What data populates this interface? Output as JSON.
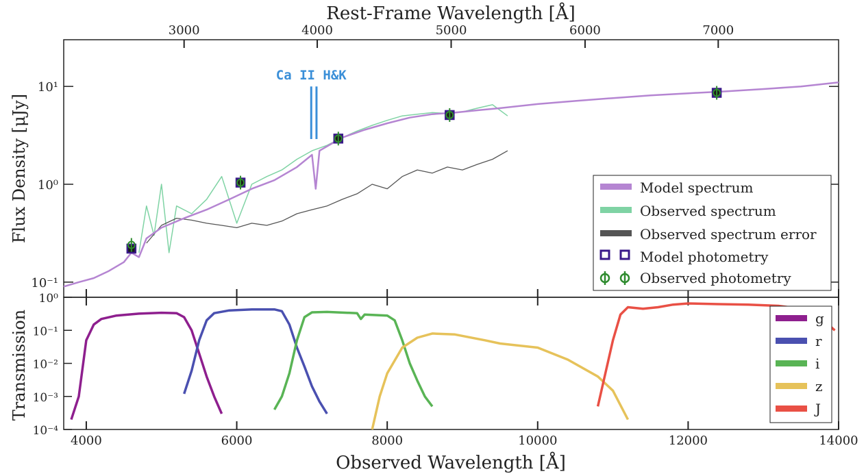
{
  "figure": {
    "top_axis_title": "Rest-Frame Wavelength [Å]",
    "bottom_axis_title": "Observed Wavelength [Å]",
    "colors": {
      "model_spectrum": "#b585d2",
      "observed_spectrum": "#7fd3a4",
      "spectrum_error": "#555555",
      "model_photometry": "#3a1a8a",
      "observed_photometry": "#2e8b2e",
      "annotation": "#3a8fd8",
      "g": "#8e1f8e",
      "r": "#4a50b0",
      "i": "#59b455",
      "z": "#e6c25a",
      "J": "#e95045"
    }
  },
  "chart_data": [
    {
      "type": "line",
      "panel": "top",
      "ylabel": "Flux Density [μJy]",
      "yscale": "log",
      "ylim": [
        0.07,
        30
      ],
      "xlim": [
        3700,
        14000
      ],
      "x_unit": "Observed Wavelength [Å]",
      "ytick_labels": [
        "10⁻¹",
        "10⁰",
        "10¹"
      ],
      "ytick_values": [
        0.1,
        1,
        10
      ],
      "top_axis": {
        "label": "Rest-Frame Wavelength [Å]",
        "tick_labels": [
          "3000",
          "4000",
          "5000",
          "6000",
          "7000"
        ],
        "tick_values_observed": [
          5300,
          7070,
          8850,
          10630,
          12400
        ]
      },
      "annotation": {
        "text": "Ca II H&K",
        "x": [
          6990,
          7060
        ],
        "y_range": [
          2.9,
          11
        ]
      },
      "legend": {
        "placement": "lower right",
        "entries": [
          "Model spectrum",
          "Observed spectrum",
          "Observed spectrum error",
          "Model photometry",
          "Observed photometry"
        ]
      },
      "series": [
        {
          "name": "Model spectrum",
          "x": [
            3700,
            3900,
            4100,
            4300,
            4500,
            4600,
            4700,
            4800,
            5000,
            5300,
            5600,
            5900,
            6200,
            6500,
            6800,
            7000,
            7050,
            7100,
            7400,
            7700,
            8000,
            8300,
            8600,
            8900,
            9200,
            9500,
            10000,
            10500,
            11000,
            11500,
            12000,
            12500,
            13000,
            13500,
            14000
          ],
          "y": [
            0.09,
            0.1,
            0.11,
            0.13,
            0.16,
            0.2,
            0.18,
            0.28,
            0.36,
            0.45,
            0.55,
            0.7,
            0.9,
            1.1,
            1.5,
            2.0,
            0.9,
            2.2,
            3.0,
            3.6,
            4.2,
            4.8,
            5.2,
            5.4,
            5.7,
            6.0,
            6.6,
            7.1,
            7.6,
            8.1,
            8.5,
            8.9,
            9.4,
            10.0,
            11.0
          ]
        },
        {
          "name": "Observed spectrum",
          "x": [
            4700,
            4800,
            4900,
            5000,
            5100,
            5200,
            5400,
            5600,
            5800,
            6000,
            6200,
            6400,
            6600,
            6800,
            7000,
            7200,
            7400,
            7600,
            7800,
            8000,
            8200,
            8400,
            8600,
            8800,
            9000,
            9200,
            9400,
            9600
          ],
          "y": [
            0.2,
            0.6,
            0.3,
            1.0,
            0.2,
            0.6,
            0.5,
            0.7,
            1.2,
            0.4,
            1.0,
            1.2,
            1.4,
            1.8,
            2.2,
            2.5,
            3.0,
            3.5,
            4.0,
            4.5,
            5.0,
            5.2,
            5.4,
            5.3,
            5.5,
            6.0,
            6.5,
            5.0
          ]
        },
        {
          "name": "Observed spectrum error",
          "x": [
            4800,
            5000,
            5200,
            5400,
            5600,
            5800,
            6000,
            6200,
            6400,
            6600,
            6800,
            7000,
            7200,
            7400,
            7600,
            7800,
            8000,
            8200,
            8400,
            8600,
            8800,
            9000,
            9200,
            9400,
            9600
          ],
          "y": [
            0.25,
            0.38,
            0.45,
            0.43,
            0.4,
            0.38,
            0.36,
            0.4,
            0.38,
            0.42,
            0.5,
            0.55,
            0.6,
            0.7,
            0.8,
            1.0,
            0.9,
            1.2,
            1.4,
            1.3,
            1.5,
            1.4,
            1.6,
            1.8,
            2.2
          ]
        }
      ],
      "photometry": {
        "model": {
          "x": [
            4600,
            6050,
            7350,
            8830,
            12380
          ],
          "y": [
            0.22,
            1.04,
            2.93,
            5.1,
            8.6
          ]
        },
        "observed": {
          "x": [
            4600,
            6050,
            7350,
            8830,
            12380
          ],
          "y": [
            0.24,
            1.04,
            2.93,
            5.1,
            8.6
          ]
        }
      }
    },
    {
      "type": "line",
      "panel": "bottom",
      "ylabel": "Transmission",
      "yscale": "log",
      "ylim": [
        0.0001,
        1
      ],
      "xlim": [
        3700,
        14000
      ],
      "xlabel": "Observed Wavelength [Å]",
      "xtick_labels": [
        "4000",
        "6000",
        "8000",
        "10000",
        "12000",
        "14000"
      ],
      "xtick_values": [
        4000,
        6000,
        8000,
        10000,
        12000,
        14000
      ],
      "ytick_labels": [
        "10⁻⁴",
        "10⁻³",
        "10⁻²",
        "10⁻¹",
        "10⁰"
      ],
      "ytick_values": [
        0.0001,
        0.001,
        0.01,
        0.1,
        1
      ],
      "legend": {
        "placement": "upper right",
        "entries": [
          "g",
          "r",
          "i",
          "z",
          "J"
        ]
      },
      "series": [
        {
          "name": "g",
          "x": [
            3800,
            3900,
            4000,
            4100,
            4200,
            4400,
            4700,
            5000,
            5200,
            5300,
            5400,
            5500,
            5600,
            5700,
            5800
          ],
          "y": [
            0.0002,
            0.001,
            0.05,
            0.15,
            0.22,
            0.28,
            0.32,
            0.34,
            0.33,
            0.25,
            0.1,
            0.02,
            0.004,
            0.001,
            0.0003
          ]
        },
        {
          "name": "r",
          "x": [
            5300,
            5400,
            5500,
            5600,
            5700,
            5900,
            6200,
            6500,
            6600,
            6700,
            6800,
            6900,
            7000,
            7100,
            7200
          ],
          "y": [
            0.0012,
            0.006,
            0.05,
            0.2,
            0.33,
            0.4,
            0.43,
            0.43,
            0.38,
            0.15,
            0.03,
            0.008,
            0.002,
            0.0007,
            0.0003
          ]
        },
        {
          "name": "i",
          "x": [
            6500,
            6600,
            6700,
            6800,
            6900,
            7000,
            7200,
            7600,
            7650,
            7700,
            8000,
            8100,
            8200,
            8300,
            8400,
            8500,
            8600
          ],
          "y": [
            0.0004,
            0.001,
            0.005,
            0.05,
            0.25,
            0.35,
            0.36,
            0.33,
            0.22,
            0.3,
            0.28,
            0.2,
            0.05,
            0.01,
            0.003,
            0.001,
            0.0005
          ]
        },
        {
          "name": "z",
          "x": [
            7800,
            7900,
            8000,
            8200,
            8400,
            8600,
            8900,
            9300,
            9500,
            10000,
            10400,
            10800,
            11000,
            11200
          ],
          "y": [
            0.0001,
            0.001,
            0.005,
            0.03,
            0.06,
            0.08,
            0.075,
            0.05,
            0.04,
            0.03,
            0.013,
            0.004,
            0.0015,
            0.0002
          ]
        },
        {
          "name": "J",
          "x": [
            10800,
            10900,
            11000,
            11100,
            11200,
            11400,
            11600,
            11800,
            12000,
            12400,
            12800,
            13200,
            13400,
            13600,
            13800,
            13950
          ],
          "y": [
            0.0005,
            0.005,
            0.05,
            0.3,
            0.5,
            0.45,
            0.5,
            0.6,
            0.65,
            0.62,
            0.6,
            0.55,
            0.48,
            0.35,
            0.2,
            0.1
          ]
        }
      ]
    }
  ]
}
